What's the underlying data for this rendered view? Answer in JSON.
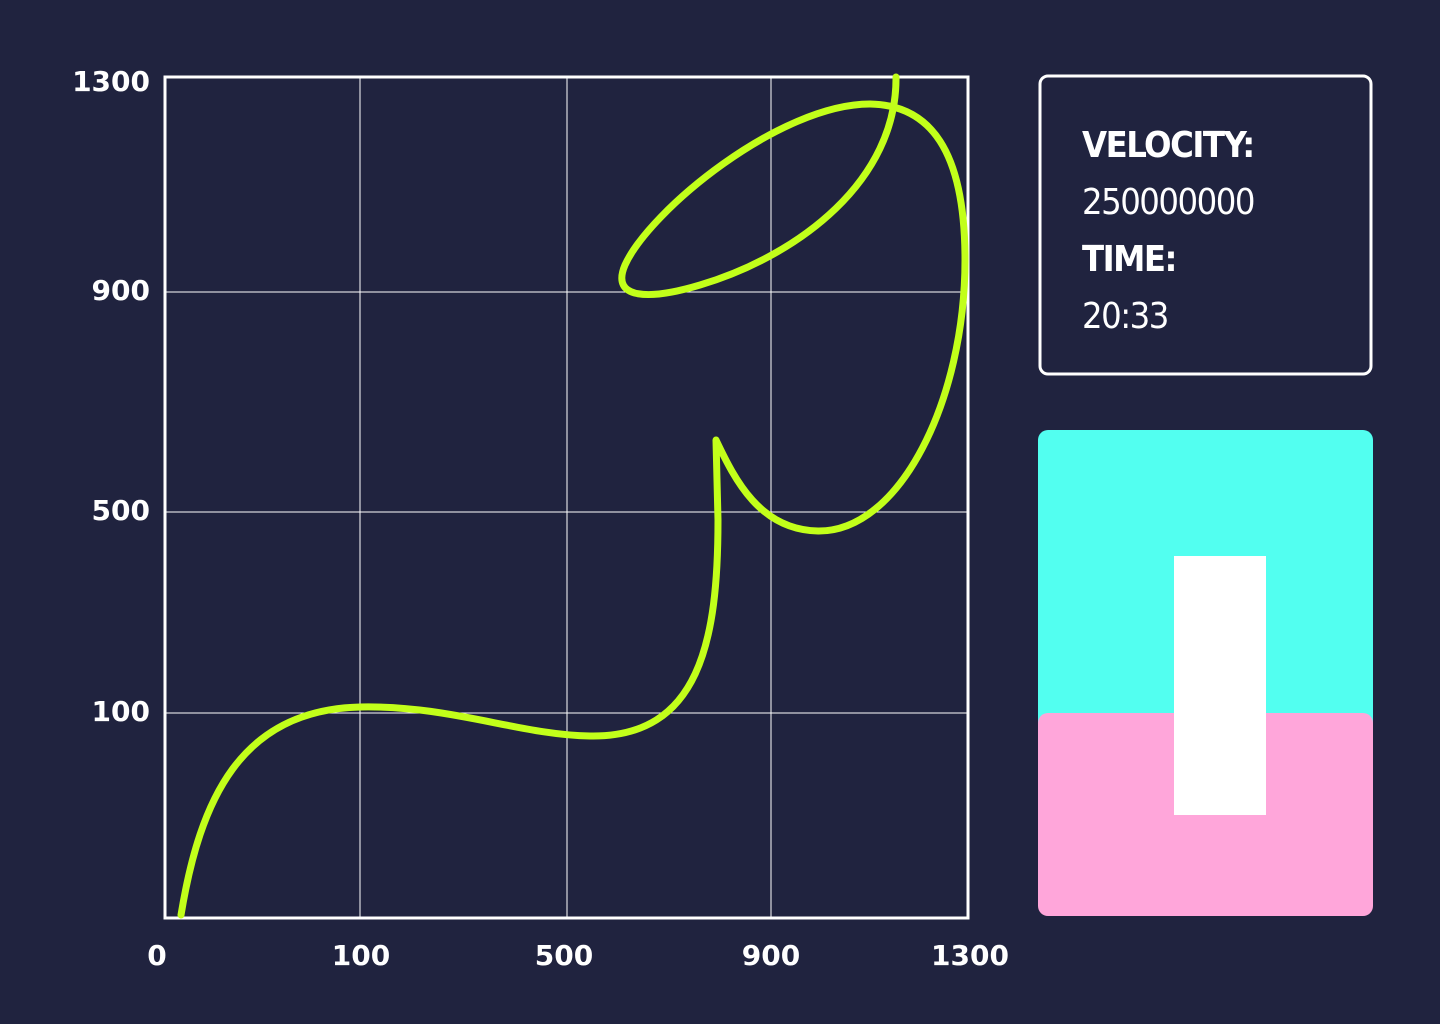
{
  "plot": {
    "x_labels": [
      0,
      100,
      500,
      900,
      1300
    ],
    "y_labels": [
      1300,
      900,
      500,
      100
    ]
  },
  "info": {
    "velocity_label": "VELOCITY:",
    "velocity": 250000000,
    "time_label": "TIME:",
    "time": "20:33"
  }
}
